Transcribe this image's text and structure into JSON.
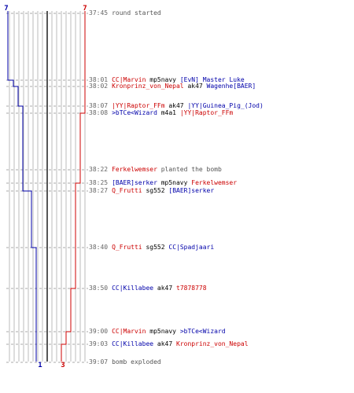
{
  "colors": {
    "ct": "#0000aa",
    "t": "#cc0000",
    "grid": "#bbbbbb",
    "center_line": "#555555",
    "time": "#666666",
    "neutral": "#555555"
  },
  "counters": {
    "ct_start": "7",
    "t_start": "7",
    "ct_end": "1",
    "t_end": "3"
  },
  "events": [
    {
      "time": "37:45",
      "parts": [
        {
          "text": "round started",
          "cls": "neutral"
        }
      ]
    },
    {
      "time": "38:01",
      "parts": [
        {
          "text": "CC|Marvin",
          "cls": "red"
        },
        {
          "text": "mp5navy",
          "cls": "weapon"
        },
        {
          "text": "[EvN] Master Luke",
          "cls": "blue"
        }
      ]
    },
    {
      "time": "38:02",
      "parts": [
        {
          "text": "Kronprinz_von_Nepal",
          "cls": "red"
        },
        {
          "text": "ak47",
          "cls": "weapon"
        },
        {
          "text": "Wagenhe[BAER]",
          "cls": "blue"
        }
      ]
    },
    {
      "time": "38:07",
      "parts": [
        {
          "text": "|YY|Raptor_FFm",
          "cls": "red"
        },
        {
          "text": "ak47",
          "cls": "weapon"
        },
        {
          "text": "|YY|Guinea_Pig_(Jod)",
          "cls": "blue"
        }
      ]
    },
    {
      "time": "38:08",
      "parts": [
        {
          "text": ">bTCe<Wizard",
          "cls": "blue"
        },
        {
          "text": "m4a1",
          "cls": "weapon"
        },
        {
          "text": "|YY|Raptor_FFm",
          "cls": "red"
        }
      ]
    },
    {
      "time": "38:22",
      "parts": [
        {
          "text": "Ferkelwemser",
          "cls": "red"
        },
        {
          "text": "planted the bomb",
          "cls": "neutral"
        }
      ]
    },
    {
      "time": "38:25",
      "parts": [
        {
          "text": "[BAER]serker",
          "cls": "blue"
        },
        {
          "text": "mp5navy",
          "cls": "weapon"
        },
        {
          "text": "Ferkelwemser",
          "cls": "red"
        }
      ]
    },
    {
      "time": "38:27",
      "parts": [
        {
          "text": "Q_Frutti",
          "cls": "red"
        },
        {
          "text": "sg552",
          "cls": "weapon"
        },
        {
          "text": "[BAER]serker",
          "cls": "blue"
        }
      ]
    },
    {
      "time": "38:40",
      "parts": [
        {
          "text": "Q_Frutti",
          "cls": "red"
        },
        {
          "text": "sg552",
          "cls": "weapon"
        },
        {
          "text": "CC|Spadjaari",
          "cls": "blue"
        }
      ]
    },
    {
      "time": "38:50",
      "parts": [
        {
          "text": "CC|Killabee",
          "cls": "blue"
        },
        {
          "text": "ak47",
          "cls": "weapon"
        },
        {
          "text": "t7878778",
          "cls": "red"
        }
      ]
    },
    {
      "time": "39:00",
      "parts": [
        {
          "text": "CC|Marvin",
          "cls": "red"
        },
        {
          "text": "mp5navy",
          "cls": "weapon"
        },
        {
          "text": ">bTCe<Wizard",
          "cls": "blue"
        }
      ]
    },
    {
      "time": "39:03",
      "parts": [
        {
          "text": "CC|Killabee",
          "cls": "blue"
        },
        {
          "text": "ak47",
          "cls": "weapon"
        },
        {
          "text": "Kronprinz_von_Nepal",
          "cls": "red"
        }
      ]
    },
    {
      "time": "39:07",
      "parts": [
        {
          "text": "bomb exploded",
          "cls": "neutral"
        }
      ]
    }
  ]
}
